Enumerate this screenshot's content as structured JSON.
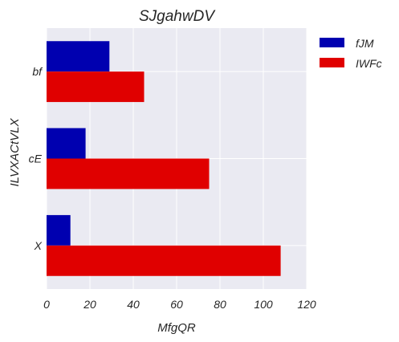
{
  "chart_data": {
    "type": "bar",
    "orientation": "horizontal",
    "title": "SJgahwDV",
    "xlabel": "MfgQR",
    "ylabel": "ILVXACtVLX",
    "categories": [
      "bf",
      "cE",
      "X"
    ],
    "series": [
      {
        "name": "fJM",
        "values": [
          29,
          18,
          11
        ],
        "color": "#0000b0"
      },
      {
        "name": "IWFc",
        "values": [
          45,
          75,
          108
        ],
        "color": "#e00000"
      }
    ],
    "xlim": [
      0,
      120
    ],
    "xticks": [
      0,
      20,
      40,
      60,
      80,
      100,
      120
    ],
    "grid": true,
    "legend_position": "outside-top-right",
    "plot_background": "#eaeaf2"
  }
}
